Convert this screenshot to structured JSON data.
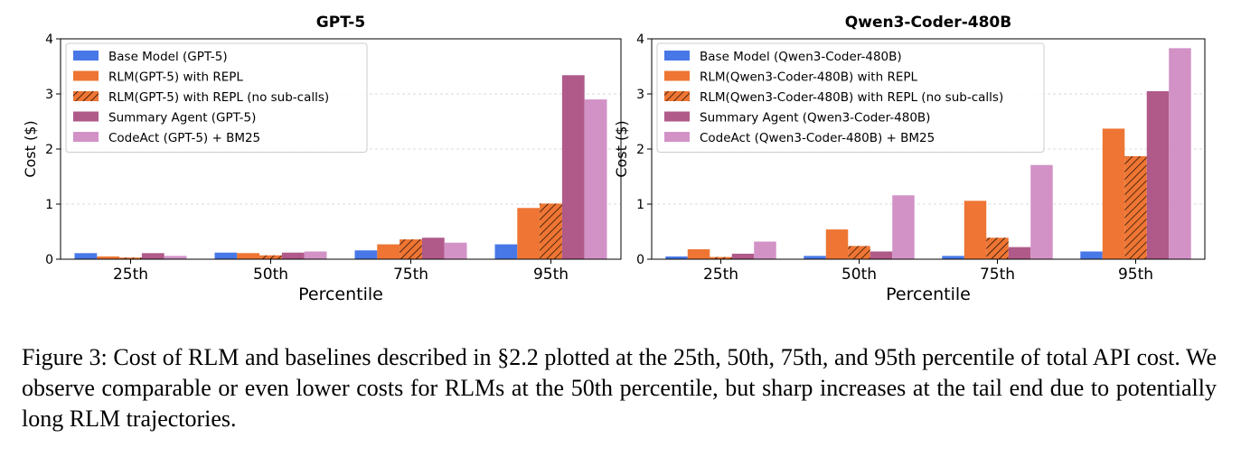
{
  "chart_data": [
    {
      "type": "bar",
      "title": "GPT-5",
      "xlabel": "Percentile",
      "ylabel": "Cost ($)",
      "ylim": [
        0,
        4
      ],
      "yticks": [
        "0",
        "1",
        "2",
        "3",
        "4"
      ],
      "categories": [
        "25th",
        "50th",
        "75th",
        "95th"
      ],
      "grid": "horizontal dashed",
      "legend_position": "upper-left",
      "series": [
        {
          "name": "Base Model (GPT-5)",
          "color": "#4878e8",
          "hatch": false,
          "values": [
            0.11,
            0.12,
            0.16,
            0.27
          ]
        },
        {
          "name": "RLM(GPT-5) with REPL",
          "color": "#ee7533",
          "hatch": false,
          "values": [
            0.05,
            0.11,
            0.27,
            0.93
          ]
        },
        {
          "name": "RLM(GPT-5) with REPL (no sub-calls)",
          "color": "#ee7533",
          "hatch": true,
          "values": [
            0.03,
            0.07,
            0.36,
            1.01
          ]
        },
        {
          "name": "Summary Agent (GPT-5)",
          "color": "#b05a8a",
          "hatch": false,
          "values": [
            0.11,
            0.12,
            0.39,
            3.34
          ]
        },
        {
          "name": "CodeAct (GPT-5) + BM25",
          "color": "#d292c6",
          "hatch": false,
          "values": [
            0.06,
            0.14,
            0.3,
            2.9
          ]
        }
      ]
    },
    {
      "type": "bar",
      "title": "Qwen3-Coder-480B",
      "xlabel": "Percentile",
      "ylabel": "Cost ($)",
      "ylim": [
        0,
        4
      ],
      "yticks": [
        "0",
        "1",
        "2",
        "3",
        "4"
      ],
      "categories": [
        "25th",
        "50th",
        "75th",
        "95th"
      ],
      "grid": "horizontal dashed",
      "legend_position": "upper-left",
      "series": [
        {
          "name": "Base Model (Qwen3-Coder-480B)",
          "color": "#4878e8",
          "hatch": false,
          "values": [
            0.05,
            0.06,
            0.06,
            0.14
          ]
        },
        {
          "name": "RLM(Qwen3-Coder-480B) with REPL",
          "color": "#ee7533",
          "hatch": false,
          "values": [
            0.18,
            0.54,
            1.06,
            2.37
          ]
        },
        {
          "name": "RLM(Qwen3-Coder-480B) with REPL (no sub-calls)",
          "color": "#ee7533",
          "hatch": true,
          "values": [
            0.04,
            0.24,
            0.39,
            1.87
          ]
        },
        {
          "name": "Summary Agent (Qwen3-Coder-480B)",
          "color": "#b05a8a",
          "hatch": false,
          "values": [
            0.1,
            0.14,
            0.22,
            3.05
          ]
        },
        {
          "name": "CodeAct (Qwen3-Coder-480B) + BM25",
          "color": "#d292c6",
          "hatch": false,
          "values": [
            0.32,
            1.16,
            1.71,
            3.83
          ]
        }
      ]
    }
  ],
  "caption": "Figure 3: Cost of RLM and baselines described in §2.2 plotted at the 25th, 50th, 75th, and 95th percentile of total API cost.  We observe comparable or even lower costs for RLMs at the 50th percentile, but sharp increases at the tail end due to potentially long RLM trajectories."
}
